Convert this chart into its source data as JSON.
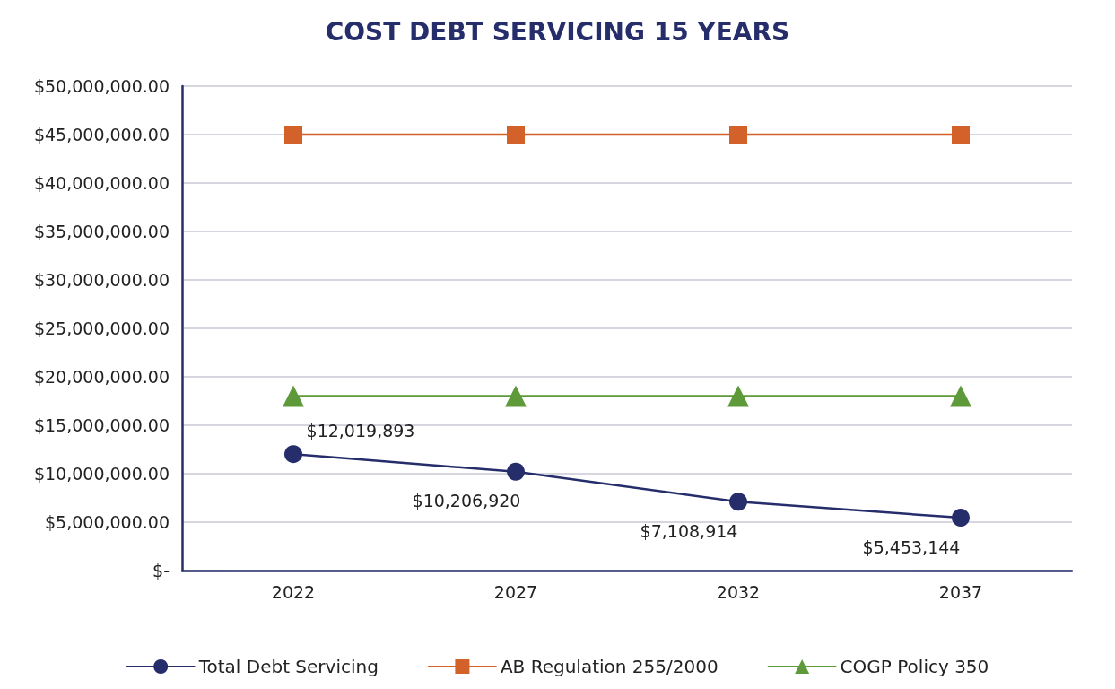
{
  "chart_data": {
    "type": "line",
    "title": "COST DEBT SERVICING 15 YEARS",
    "categories": [
      "2022",
      "2027",
      "2032",
      "2037"
    ],
    "series": [
      {
        "name": "Total Debt Servicing",
        "color": "#262d6b",
        "marker": "circle",
        "values": [
          12019893,
          10206920,
          7108914,
          5453144
        ],
        "value_labels": [
          "$12,019,893",
          "$10,206,920",
          "$7,108,914",
          "$5,453,144"
        ]
      },
      {
        "name": "AB Regulation 255/2000",
        "color": "#d2622a",
        "marker": "square",
        "values": [
          45000000,
          45000000,
          45000000,
          45000000
        ]
      },
      {
        "name": "COGP Policy 350",
        "color": "#5e9a3a",
        "marker": "triangle",
        "values": [
          18000000,
          18000000,
          18000000,
          18000000
        ]
      }
    ],
    "ylim": [
      0,
      50000000
    ],
    "yticks": [
      {
        "value": 0,
        "label": "$-"
      },
      {
        "value": 5000000,
        "label": "$5,000,000.00"
      },
      {
        "value": 10000000,
        "label": "$10,000,000.00"
      },
      {
        "value": 15000000,
        "label": "$15,000,000.00"
      },
      {
        "value": 20000000,
        "label": "$20,000,000.00"
      },
      {
        "value": 25000000,
        "label": "$25,000,000.00"
      },
      {
        "value": 30000000,
        "label": "$30,000,000.00"
      },
      {
        "value": 35000000,
        "label": "$35,000,000.00"
      },
      {
        "value": 40000000,
        "label": "$40,000,000.00"
      },
      {
        "value": 45000000,
        "label": "$45,000,000.00"
      },
      {
        "value": 50000000,
        "label": "$50,000,000.00"
      }
    ],
    "grid": "y",
    "legend": "bottom",
    "line_style": "solid"
  }
}
